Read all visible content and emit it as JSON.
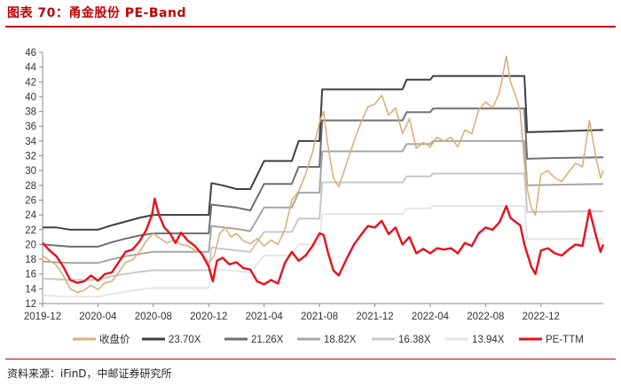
{
  "title": "图表 70：甬金股份 PE-Band",
  "source": "资料来源：iFinD，中邮证券研究所",
  "chart_data": {
    "type": "line",
    "title": "甬金股份 PE-Band",
    "xlabel": "",
    "ylabel": "",
    "ylim": [
      12,
      46
    ],
    "yticks": [
      12,
      14,
      16,
      18,
      20,
      22,
      24,
      26,
      28,
      30,
      32,
      34,
      36,
      38,
      40,
      42,
      44,
      46
    ],
    "x_range_months": [
      0,
      40.5
    ],
    "x_ticks": [
      {
        "m": 0,
        "label": "2019-12"
      },
      {
        "m": 4,
        "label": "2020-04"
      },
      {
        "m": 8,
        "label": "2020-08"
      },
      {
        "m": 12,
        "label": "2020-12"
      },
      {
        "m": 16,
        "label": "2021-04"
      },
      {
        "m": 20,
        "label": "2021-08"
      },
      {
        "m": 24,
        "label": "2021-12"
      },
      {
        "m": 28,
        "label": "2022-04"
      },
      {
        "m": 32,
        "label": "2022-08"
      },
      {
        "m": 36,
        "label": "2022-12"
      }
    ],
    "series": [
      {
        "name": "收盘价",
        "color": "#d9b07a",
        "width": 1.6,
        "points": [
          [
            0,
            18.5
          ],
          [
            0.5,
            17.8
          ],
          [
            1,
            17.2
          ],
          [
            1.5,
            15.8
          ],
          [
            2,
            14.0
          ],
          [
            2.5,
            13.5
          ],
          [
            3,
            13.8
          ],
          [
            3.5,
            14.5
          ],
          [
            4,
            13.9
          ],
          [
            4.5,
            14.8
          ],
          [
            5,
            15.0
          ],
          [
            5.5,
            16.2
          ],
          [
            6,
            17.6
          ],
          [
            6.5,
            17.9
          ],
          [
            7,
            19.0
          ],
          [
            7.5,
            20.5
          ],
          [
            8,
            21.5
          ],
          [
            8.5,
            20.8
          ],
          [
            9,
            20.2
          ],
          [
            9.5,
            20.6
          ],
          [
            10,
            20.0
          ],
          [
            10.5,
            19.8
          ],
          [
            11,
            19.2
          ],
          [
            11.5,
            18.8
          ],
          [
            12,
            17.5
          ],
          [
            12.4,
            18.5
          ],
          [
            12.8,
            21.5
          ],
          [
            13.2,
            22.3
          ],
          [
            13.6,
            21.0
          ],
          [
            14,
            21.5
          ],
          [
            14.5,
            20.5
          ],
          [
            15,
            20.1
          ],
          [
            15.5,
            20.8
          ],
          [
            16,
            19.8
          ],
          [
            16.5,
            20.6
          ],
          [
            17,
            20.0
          ],
          [
            17.5,
            22.0
          ],
          [
            18,
            26.0
          ],
          [
            18.5,
            27.2
          ],
          [
            19,
            29.5
          ],
          [
            19.5,
            32.5
          ],
          [
            20,
            36.5
          ],
          [
            20.3,
            38.0
          ],
          [
            20.6,
            33.5
          ],
          [
            21,
            29.0
          ],
          [
            21.4,
            27.8
          ],
          [
            22,
            31.2
          ],
          [
            22.5,
            34.0
          ],
          [
            23,
            36.5
          ],
          [
            23.5,
            38.6
          ],
          [
            24,
            39.0
          ],
          [
            24.5,
            40.2
          ],
          [
            25,
            37.5
          ],
          [
            25.5,
            38.5
          ],
          [
            26,
            35.0
          ],
          [
            26.5,
            37.0
          ],
          [
            27,
            33.0
          ],
          [
            27.5,
            33.8
          ],
          [
            28,
            33.2
          ],
          [
            28.5,
            34.5
          ],
          [
            29,
            34.0
          ],
          [
            29.5,
            34.5
          ],
          [
            30,
            33.2
          ],
          [
            30.5,
            35.5
          ],
          [
            31,
            35.0
          ],
          [
            31.5,
            38.2
          ],
          [
            32,
            39.3
          ],
          [
            32.5,
            38.5
          ],
          [
            33,
            40.5
          ],
          [
            33.5,
            45.5
          ],
          [
            33.8,
            42.0
          ],
          [
            34.2,
            40.0
          ],
          [
            34.5,
            38.0
          ],
          [
            34.8,
            31.0
          ],
          [
            35,
            27.5
          ],
          [
            35.3,
            25.0
          ],
          [
            35.6,
            24.0
          ],
          [
            36,
            29.5
          ],
          [
            36.5,
            30.0
          ],
          [
            37,
            29.0
          ],
          [
            37.5,
            28.5
          ],
          [
            38,
            29.8
          ],
          [
            38.5,
            31.0
          ],
          [
            39,
            30.5
          ],
          [
            39.5,
            36.8
          ],
          [
            40,
            31.5
          ],
          [
            40.3,
            29.0
          ],
          [
            40.5,
            30.0
          ]
        ]
      },
      {
        "name": "23.70X",
        "color": "#3f3f3f",
        "width": 2.0,
        "points": [
          [
            0,
            22.3
          ],
          [
            1,
            22.3
          ],
          [
            2,
            22.0
          ],
          [
            4,
            22.0
          ],
          [
            5,
            22.6
          ],
          [
            6,
            23.1
          ],
          [
            7,
            23.6
          ],
          [
            8,
            24.0
          ],
          [
            9,
            24.0
          ],
          [
            10,
            24.0
          ],
          [
            11,
            24.0
          ],
          [
            12,
            24.0
          ],
          [
            12.2,
            28.3
          ],
          [
            13,
            28.0
          ],
          [
            14,
            27.5
          ],
          [
            15,
            27.5
          ],
          [
            16,
            31.3
          ],
          [
            18,
            31.3
          ],
          [
            18.5,
            34.0
          ],
          [
            20,
            34.0
          ],
          [
            20.2,
            41.0
          ],
          [
            22,
            41.0
          ],
          [
            24,
            41.0
          ],
          [
            26,
            41.0
          ],
          [
            26.3,
            42.3
          ],
          [
            28,
            42.3
          ],
          [
            28.2,
            42.8
          ],
          [
            31,
            42.8
          ],
          [
            33,
            42.8
          ],
          [
            34.8,
            42.8
          ],
          [
            35,
            35.2
          ],
          [
            37,
            35.3
          ],
          [
            40.5,
            35.5
          ]
        ]
      },
      {
        "name": "21.26X",
        "color": "#6f6f6f",
        "width": 2.0,
        "points": [
          [
            0,
            20.0
          ],
          [
            2,
            19.7
          ],
          [
            4,
            19.7
          ],
          [
            5,
            20.3
          ],
          [
            6,
            20.8
          ],
          [
            7,
            21.2
          ],
          [
            8,
            21.5
          ],
          [
            9,
            21.5
          ],
          [
            12,
            21.5
          ],
          [
            12.2,
            25.4
          ],
          [
            14,
            25.0
          ],
          [
            15,
            24.6
          ],
          [
            16,
            28.2
          ],
          [
            18,
            28.2
          ],
          [
            18.5,
            30.5
          ],
          [
            20,
            30.5
          ],
          [
            20.2,
            36.8
          ],
          [
            24,
            36.8
          ],
          [
            26,
            36.8
          ],
          [
            26.3,
            37.9
          ],
          [
            28,
            37.9
          ],
          [
            28.2,
            38.4
          ],
          [
            34.8,
            38.4
          ],
          [
            35,
            31.6
          ],
          [
            37,
            31.7
          ],
          [
            40.5,
            31.8
          ]
        ]
      },
      {
        "name": "18.82X",
        "color": "#a6a6a6",
        "width": 2.0,
        "points": [
          [
            0,
            17.7
          ],
          [
            2,
            17.5
          ],
          [
            4,
            17.5
          ],
          [
            5,
            18.0
          ],
          [
            6,
            18.4
          ],
          [
            7,
            18.7
          ],
          [
            8,
            19.0
          ],
          [
            12,
            19.0
          ],
          [
            12.2,
            22.5
          ],
          [
            14,
            22.1
          ],
          [
            15,
            21.8
          ],
          [
            16,
            25.0
          ],
          [
            18,
            25.0
          ],
          [
            18.5,
            27.0
          ],
          [
            20,
            27.0
          ],
          [
            20.2,
            32.6
          ],
          [
            26,
            32.6
          ],
          [
            26.3,
            33.6
          ],
          [
            28,
            33.6
          ],
          [
            28.2,
            34.0
          ],
          [
            34.8,
            34.0
          ],
          [
            35,
            28.0
          ],
          [
            40.5,
            28.2
          ]
        ]
      },
      {
        "name": "16.38X",
        "color": "#c8c8c8",
        "width": 2.0,
        "points": [
          [
            0,
            15.4
          ],
          [
            2,
            15.2
          ],
          [
            4,
            15.2
          ],
          [
            5,
            15.7
          ],
          [
            6,
            16.0
          ],
          [
            7,
            16.3
          ],
          [
            8,
            16.5
          ],
          [
            12,
            16.5
          ],
          [
            12.2,
            19.6
          ],
          [
            14,
            19.2
          ],
          [
            15,
            19.0
          ],
          [
            16,
            21.7
          ],
          [
            18,
            21.7
          ],
          [
            18.5,
            23.5
          ],
          [
            20,
            23.5
          ],
          [
            20.2,
            28.4
          ],
          [
            26,
            28.4
          ],
          [
            26.3,
            29.2
          ],
          [
            28,
            29.2
          ],
          [
            28.2,
            29.6
          ],
          [
            34.8,
            29.6
          ],
          [
            35,
            24.4
          ],
          [
            40.5,
            24.5
          ]
        ]
      },
      {
        "name": "13.94X",
        "color": "#e6e6e6",
        "width": 2.0,
        "points": [
          [
            0,
            13.1
          ],
          [
            2,
            12.9
          ],
          [
            4,
            12.9
          ],
          [
            5,
            13.3
          ],
          [
            6,
            13.6
          ],
          [
            7,
            13.9
          ],
          [
            8,
            14.1
          ],
          [
            12,
            14.1
          ],
          [
            12.2,
            16.7
          ],
          [
            14,
            16.4
          ],
          [
            15,
            16.2
          ],
          [
            16,
            18.5
          ],
          [
            18,
            18.5
          ],
          [
            18.5,
            20.0
          ],
          [
            20,
            20.0
          ],
          [
            20.2,
            24.1
          ],
          [
            26,
            24.1
          ],
          [
            26.3,
            24.9
          ],
          [
            28,
            24.9
          ],
          [
            28.2,
            25.2
          ],
          [
            34.8,
            25.2
          ],
          [
            35,
            20.7
          ],
          [
            40.5,
            20.8
          ]
        ]
      },
      {
        "name": "PE-TTM",
        "color": "#e8101c",
        "width": 2.4,
        "points": [
          [
            0,
            20.2
          ],
          [
            0.5,
            19.2
          ],
          [
            1,
            18.4
          ],
          [
            1.5,
            17.0
          ],
          [
            2,
            15.2
          ],
          [
            2.5,
            14.8
          ],
          [
            3,
            15.0
          ],
          [
            3.5,
            15.8
          ],
          [
            4,
            15.1
          ],
          [
            4.5,
            16.0
          ],
          [
            5,
            16.2
          ],
          [
            5.5,
            17.6
          ],
          [
            6,
            19.0
          ],
          [
            6.5,
            19.3
          ],
          [
            7,
            20.4
          ],
          [
            7.5,
            22.0
          ],
          [
            7.9,
            24.0
          ],
          [
            8.1,
            26.2
          ],
          [
            8.4,
            24.0
          ],
          [
            8.8,
            22.3
          ],
          [
            9.2,
            21.5
          ],
          [
            9.6,
            20.2
          ],
          [
            10,
            21.6
          ],
          [
            10.5,
            20.5
          ],
          [
            11,
            19.8
          ],
          [
            11.5,
            18.7
          ],
          [
            12,
            17.0
          ],
          [
            12.3,
            15.0
          ],
          [
            12.6,
            17.8
          ],
          [
            13,
            18.2
          ],
          [
            13.5,
            17.3
          ],
          [
            14,
            17.6
          ],
          [
            14.5,
            16.8
          ],
          [
            15,
            16.6
          ],
          [
            15.5,
            15.0
          ],
          [
            16,
            14.6
          ],
          [
            16.5,
            15.2
          ],
          [
            17,
            14.7
          ],
          [
            17.5,
            17.5
          ],
          [
            18,
            19.0
          ],
          [
            18.5,
            17.8
          ],
          [
            19,
            18.5
          ],
          [
            19.5,
            19.8
          ],
          [
            20,
            21.5
          ],
          [
            20.3,
            21.3
          ],
          [
            20.6,
            19.0
          ],
          [
            21,
            16.5
          ],
          [
            21.4,
            15.8
          ],
          [
            22,
            18.2
          ],
          [
            22.5,
            20.0
          ],
          [
            23,
            21.3
          ],
          [
            23.5,
            22.5
          ],
          [
            24,
            22.3
          ],
          [
            24.5,
            23.2
          ],
          [
            25,
            21.4
          ],
          [
            25.5,
            22.3
          ],
          [
            26,
            20.0
          ],
          [
            26.5,
            21.0
          ],
          [
            27,
            18.8
          ],
          [
            27.5,
            19.4
          ],
          [
            28,
            18.8
          ],
          [
            28.5,
            19.5
          ],
          [
            29,
            19.3
          ],
          [
            29.5,
            19.5
          ],
          [
            30,
            18.8
          ],
          [
            30.5,
            20.2
          ],
          [
            31,
            19.8
          ],
          [
            31.5,
            21.5
          ],
          [
            32,
            22.3
          ],
          [
            32.5,
            22.0
          ],
          [
            33,
            23.0
          ],
          [
            33.5,
            25.2
          ],
          [
            33.8,
            23.6
          ],
          [
            34.2,
            23.0
          ],
          [
            34.5,
            22.6
          ],
          [
            34.8,
            20.0
          ],
          [
            35,
            18.8
          ],
          [
            35.3,
            17.0
          ],
          [
            35.6,
            16.0
          ],
          [
            36,
            19.2
          ],
          [
            36.5,
            19.5
          ],
          [
            37,
            18.8
          ],
          [
            37.5,
            18.5
          ],
          [
            38,
            19.3
          ],
          [
            38.5,
            20.0
          ],
          [
            39,
            19.8
          ],
          [
            39.5,
            24.7
          ],
          [
            40,
            21.0
          ],
          [
            40.3,
            19.0
          ],
          [
            40.5,
            20.0
          ]
        ]
      }
    ]
  }
}
